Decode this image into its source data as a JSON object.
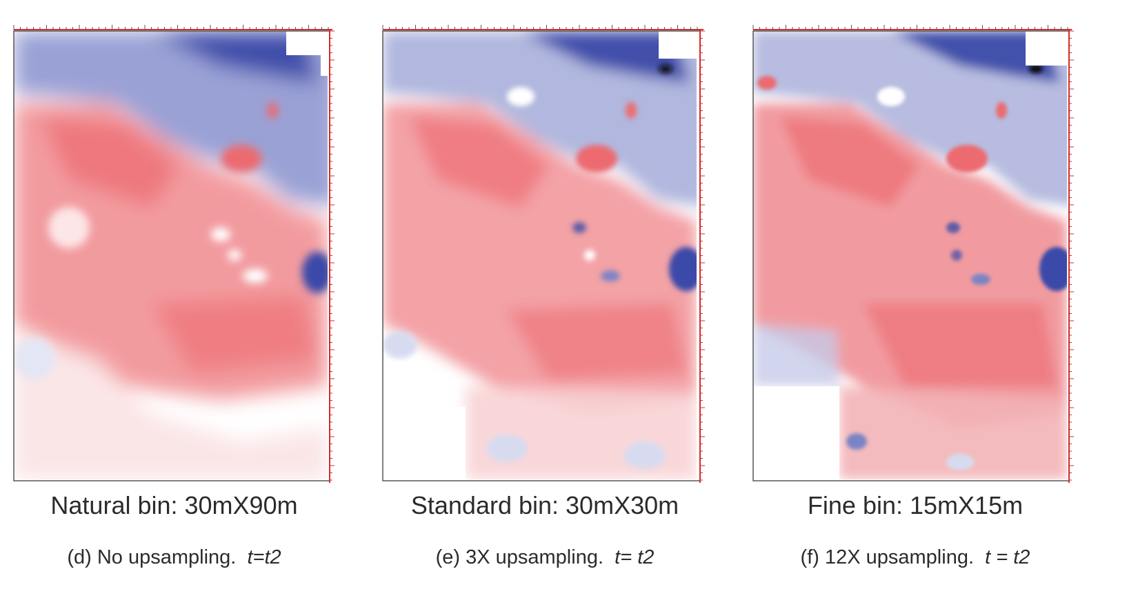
{
  "figure": {
    "panels": [
      {
        "bin_label": "Natural bin: 30mX90m",
        "caption_text": "(d) No upsampling.",
        "caption_time": "t=t2",
        "colors": {
          "negative": "#3b4aa8",
          "positive": "#e8333b",
          "zero": "#ffffff"
        }
      },
      {
        "bin_label": "Standard bin: 30mX30m",
        "caption_text": "(e) 3X upsampling.",
        "caption_time": "t= t2",
        "colors": {
          "negative": "#3b4aa8",
          "positive": "#e8333b",
          "zero": "#ffffff"
        }
      },
      {
        "bin_label": "Fine bin: 15mX15m",
        "caption_text": "(f) 12X upsampling.",
        "caption_time": "t = t2",
        "colors": {
          "negative": "#3b4aa8",
          "positive": "#e8333b",
          "zero": "#ffffff"
        }
      }
    ],
    "axis_color": "#d42a2a"
  }
}
